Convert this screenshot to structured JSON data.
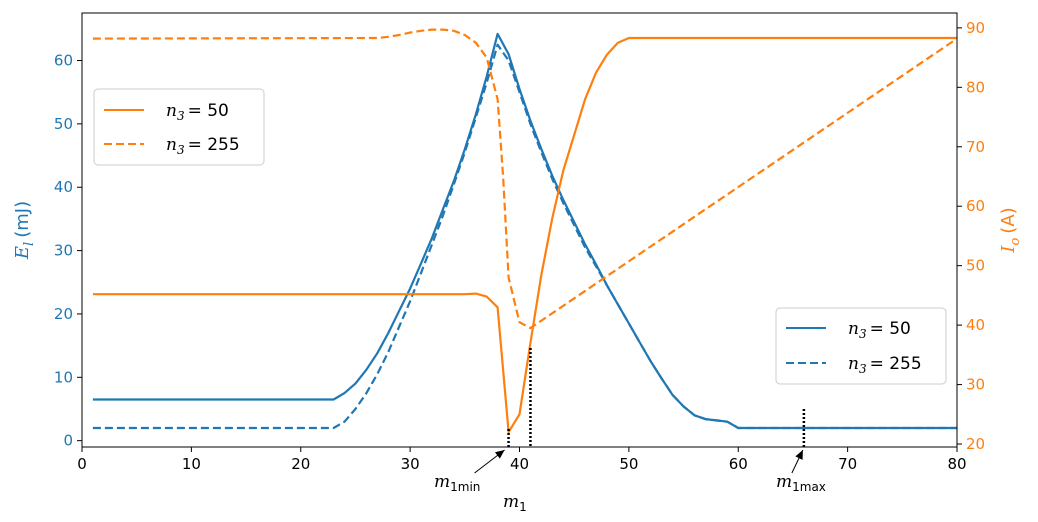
{
  "chart_data": {
    "type": "line",
    "x_axis": {
      "range": [
        0,
        80
      ],
      "ticks": [
        0,
        10,
        20,
        30,
        40,
        50,
        60,
        70,
        80
      ]
    },
    "y_left": {
      "label_var": "E",
      "label_sub": "l",
      "label_unit": "(mJ)",
      "range": [
        -1,
        67.5
      ],
      "ticks": [
        0,
        10,
        20,
        30,
        40,
        50,
        60
      ],
      "color": "#1f77b4"
    },
    "y_right": {
      "label_var": "I",
      "label_sub": "o",
      "label_unit": "(A)",
      "range": [
        19.5,
        92.5
      ],
      "ticks": [
        20,
        30,
        40,
        50,
        60,
        70,
        80,
        90
      ],
      "color": "#ff7f0e"
    },
    "legend_orange": {
      "placement": "upper-left",
      "entries": [
        {
          "var": "n",
          "sub": "3",
          "eq": "= 50",
          "style": "solid"
        },
        {
          "var": "n",
          "sub": "3",
          "eq": "= 255",
          "style": "dashed"
        }
      ]
    },
    "legend_blue": {
      "placement": "lower-right",
      "entries": [
        {
          "var": "n",
          "sub": "3",
          "eq": "= 50",
          "style": "solid"
        },
        {
          "var": "n",
          "sub": "3",
          "eq": "= 255",
          "style": "dashed"
        }
      ]
    },
    "series": [
      {
        "axis": "left",
        "style": "solid",
        "color": "#1f77b4",
        "x": [
          1,
          23,
          24,
          25,
          26,
          27,
          28,
          29,
          30,
          31,
          32,
          33,
          34,
          35,
          36,
          37,
          38,
          39,
          40,
          41,
          42,
          43,
          44,
          45,
          46,
          47,
          48,
          49,
          50,
          51,
          52,
          53,
          54,
          55,
          56,
          57,
          58,
          59,
          60,
          80
        ],
        "values": [
          6.5,
          6.5,
          7.5,
          9.0,
          11.2,
          13.8,
          17.0,
          20.5,
          24.0,
          28.0,
          32.0,
          36.5,
          41.0,
          46.0,
          51.5,
          57.5,
          64.2,
          61.0,
          55.5,
          50.5,
          46.0,
          41.8,
          38.0,
          34.5,
          31.0,
          27.8,
          24.5,
          21.5,
          18.5,
          15.5,
          12.5,
          9.8,
          7.2,
          5.4,
          4.0,
          3.4,
          3.2,
          3.0,
          2.0,
          2.0
        ]
      },
      {
        "axis": "left",
        "style": "dashed",
        "color": "#1f77b4",
        "x": [
          1,
          23,
          24,
          25,
          26,
          27,
          28,
          29,
          30,
          31,
          32,
          33,
          34,
          35,
          36,
          37,
          38,
          39,
          40,
          41,
          42,
          43,
          44,
          45,
          46,
          47,
          48,
          49,
          50,
          51,
          52,
          53,
          54,
          55,
          56,
          57,
          58,
          59,
          60,
          80
        ],
        "values": [
          2.0,
          2.0,
          3.0,
          5.0,
          7.5,
          10.5,
          14.0,
          18.0,
          22.0,
          26.5,
          31.0,
          35.5,
          40.5,
          45.5,
          51.0,
          56.5,
          62.5,
          60.0,
          55.0,
          50.0,
          45.5,
          41.3,
          37.5,
          34.0,
          30.5,
          27.5,
          24.5,
          21.5,
          18.5,
          15.5,
          12.5,
          9.8,
          7.2,
          5.4,
          4.0,
          3.4,
          3.2,
          3.0,
          2.0,
          2.0
        ]
      },
      {
        "axis": "right",
        "style": "solid",
        "color": "#ff7f0e",
        "x": [
          1,
          35,
          36,
          37,
          38,
          39,
          40,
          41,
          42,
          43,
          44,
          45,
          46,
          47,
          48,
          49,
          50,
          51,
          52,
          80
        ],
        "values": [
          45.2,
          45.2,
          45.3,
          44.8,
          43.0,
          22.0,
          25.0,
          37.0,
          48.5,
          58.0,
          66.0,
          72.0,
          78.0,
          82.5,
          85.5,
          87.5,
          88.3,
          88.3,
          88.3,
          88.3
        ]
      },
      {
        "axis": "right",
        "style": "dashed",
        "color": "#ff7f0e",
        "x": [
          1,
          27,
          28,
          29,
          30,
          31,
          32,
          33,
          34,
          35,
          36,
          37,
          38,
          38.5,
          39,
          40,
          41,
          80
        ],
        "values": [
          88.2,
          88.3,
          88.5,
          88.8,
          89.2,
          89.5,
          89.7,
          89.7,
          89.5,
          88.8,
          87.5,
          85.0,
          78.0,
          65.0,
          48.0,
          40.5,
          39.5,
          88.2
        ]
      }
    ],
    "annotations": {
      "m1min": {
        "base": "m",
        "sub": "1min",
        "x": 39
      },
      "m1": {
        "base": "m",
        "sub": "1",
        "x": 41
      },
      "m1max": {
        "base": "m",
        "sub": "1max",
        "x": 66
      }
    }
  }
}
